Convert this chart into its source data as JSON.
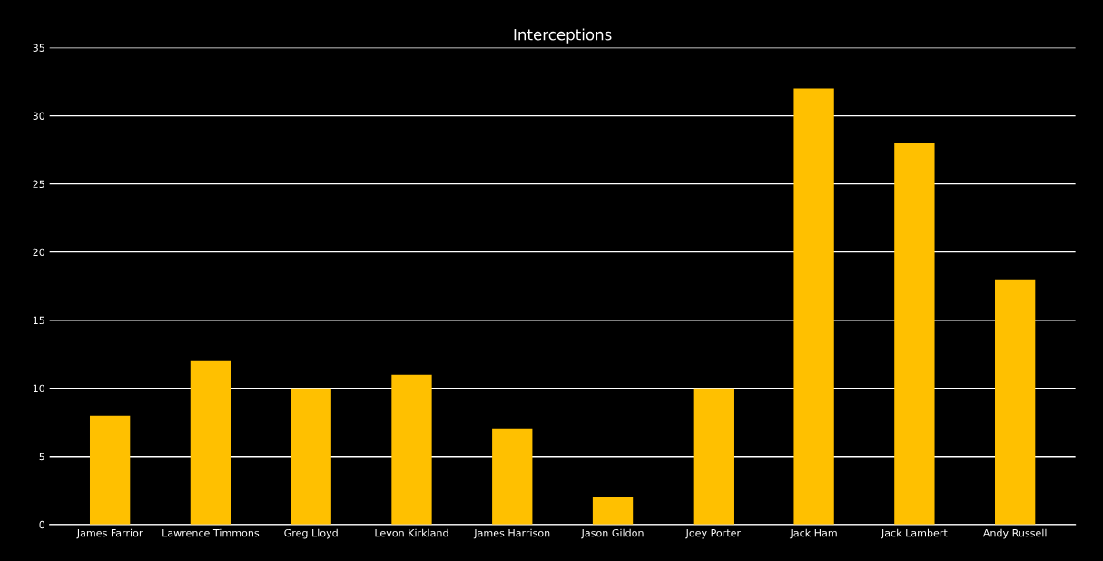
{
  "chart_data": {
    "type": "bar",
    "title": "Interceptions",
    "categories": [
      "James Farrior",
      "Lawrence Timmons",
      "Greg Lloyd",
      "Levon Kirkland",
      "James Harrison",
      "Jason Gildon",
      "Joey Porter",
      "Jack Ham",
      "Jack Lambert",
      "Andy Russell"
    ],
    "values": [
      8,
      12,
      10,
      11,
      7,
      2,
      10,
      32,
      28,
      18
    ],
    "color": "#ffc000",
    "ylim": [
      0,
      35
    ],
    "yticks": [
      0,
      5,
      10,
      15,
      20,
      25,
      30,
      35
    ],
    "grid": "y"
  }
}
